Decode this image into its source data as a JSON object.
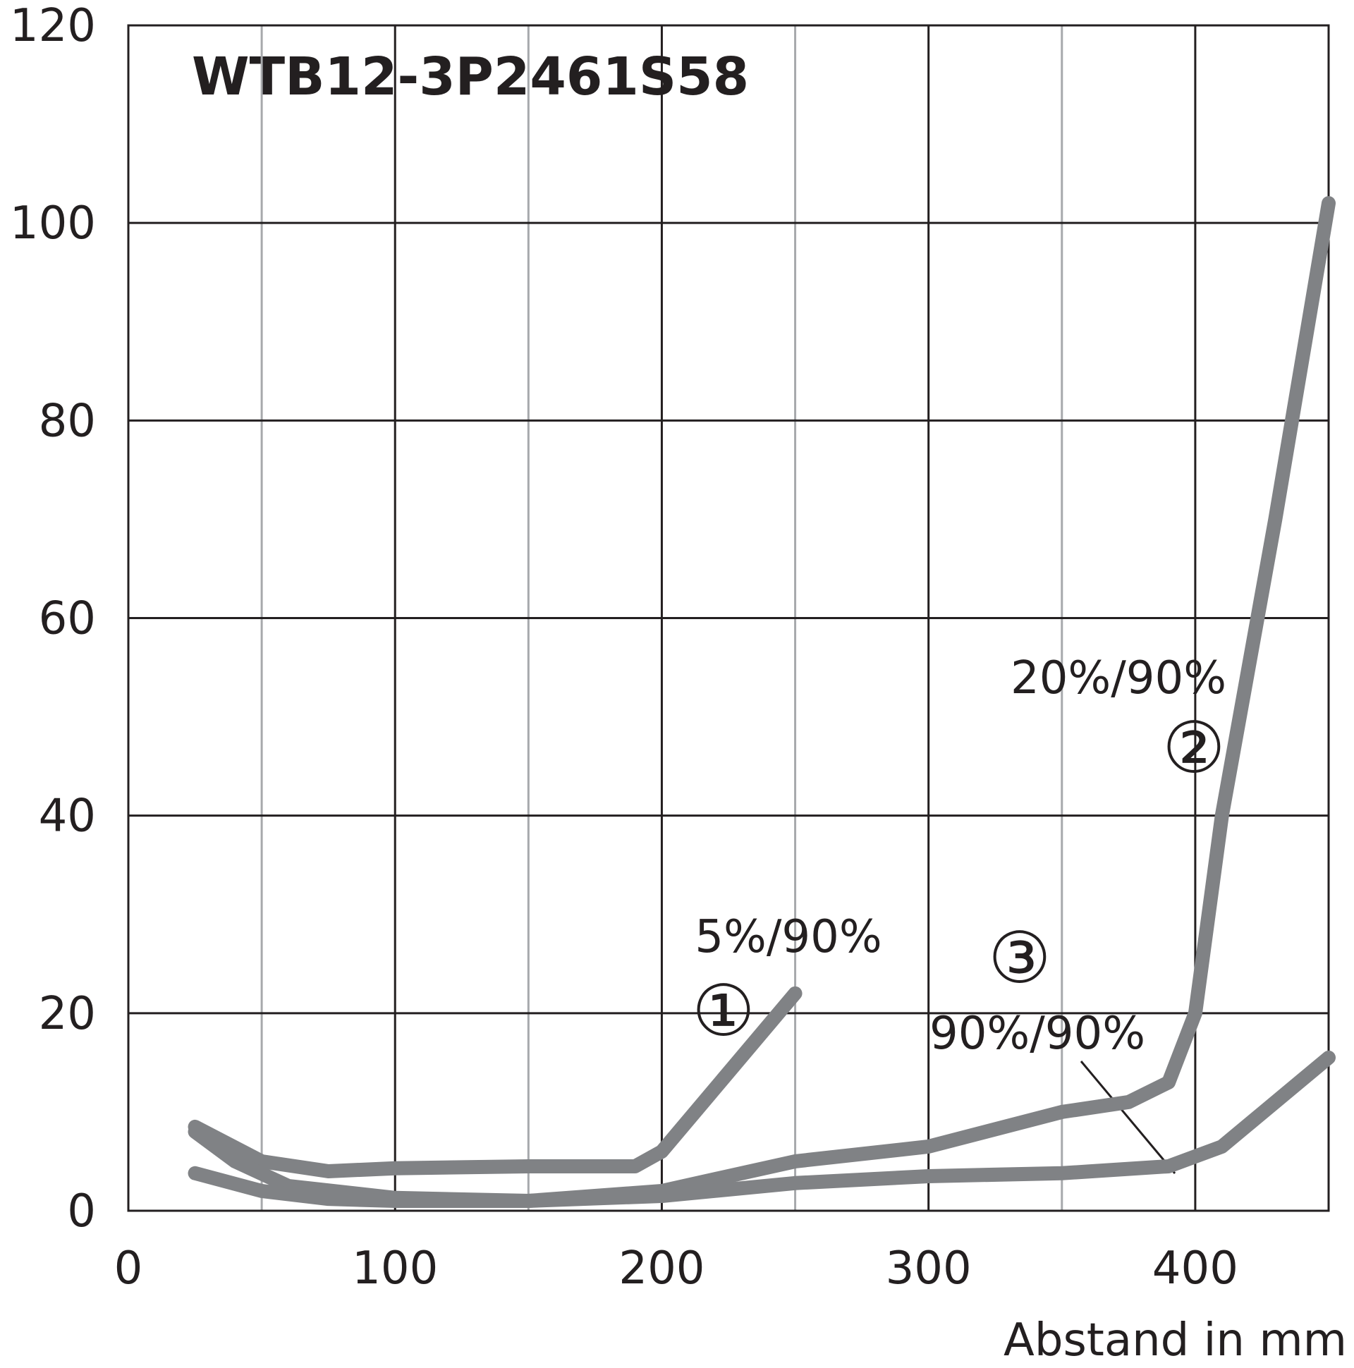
{
  "chart_data": {
    "type": "line",
    "title": "WTB12-3P2461S58",
    "x_label": "Abstand in mm",
    "xlim": [
      0,
      450
    ],
    "ylim": [
      0,
      120
    ],
    "xticks": [
      0,
      100,
      200,
      300,
      400
    ],
    "minor_xticks": [
      50,
      150,
      250,
      350
    ],
    "yticks": [
      0,
      20,
      40,
      60,
      80,
      100,
      120
    ],
    "grid": true,
    "series": [
      {
        "name": "5%/90%",
        "label": "①",
        "color": "#808285",
        "x": [
          25,
          50,
          75,
          100,
          150,
          190,
          200,
          250
        ],
        "values": [
          8.5,
          5,
          4,
          4.3,
          4.5,
          4.5,
          6,
          22
        ]
      },
      {
        "name": "20%/90%",
        "label": "②",
        "color": "#808285",
        "x": [
          25,
          40,
          60,
          100,
          150,
          200,
          250,
          300,
          350,
          375,
          390,
          400,
          410,
          430,
          450
        ],
        "values": [
          8,
          5,
          2.5,
          1.3,
          1,
          2,
          5,
          6.5,
          10,
          11,
          13,
          20,
          40,
          70,
          102
        ]
      },
      {
        "name": "90%/90%",
        "label": "③",
        "color": "#808285",
        "x": [
          25,
          50,
          75,
          100,
          150,
          200,
          250,
          300,
          350,
          390,
          410,
          450
        ],
        "values": [
          3.8,
          2,
          1.2,
          1,
          1,
          1.5,
          2.8,
          3.5,
          3.8,
          4.5,
          6.5,
          15.5
        ]
      }
    ]
  }
}
